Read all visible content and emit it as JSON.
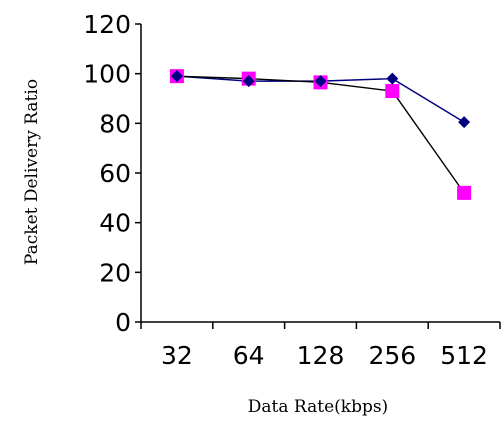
{
  "chart_data": {
    "type": "line",
    "xlabel": "Data Rate(kbps)",
    "ylabel": "Packet Delivery Ratio",
    "categories": [
      "32",
      "64",
      "128",
      "256",
      "512"
    ],
    "ylim": [
      0,
      120
    ],
    "yticks": [
      0,
      20,
      40,
      60,
      80,
      100,
      120
    ],
    "grid": false,
    "legend": "none",
    "series": [
      {
        "values": [
          99,
          97,
          97,
          98,
          80.5
        ],
        "color": "#000080",
        "line_color": "#000080",
        "marker": "diamond"
      },
      {
        "values": [
          99,
          98,
          96.5,
          93,
          52
        ],
        "color": "#FF00FF",
        "line_color": "#000000",
        "marker": "square"
      }
    ]
  }
}
